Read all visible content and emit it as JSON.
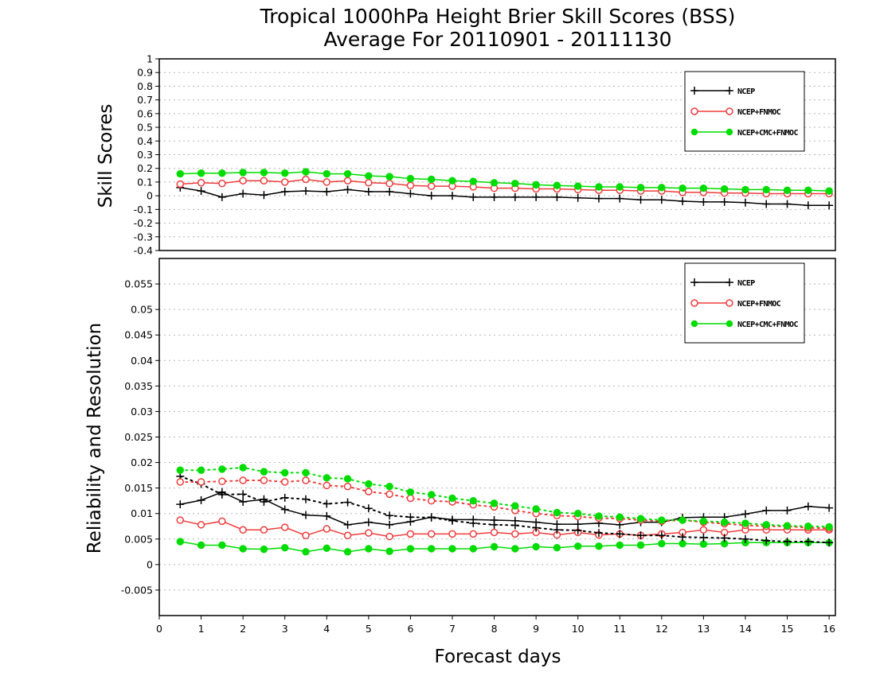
{
  "title_line1": "Tropical 1000hPa Height Brier Skill Scores (BSS)",
  "title_line2": "Average For 20110901 - 20111130",
  "xlabel": "Forecast days",
  "colors": {
    "NCEP": "#000000",
    "NCEP_FNMOC": "#f03c3c",
    "NCEP_CMC_FNMOC": "#00dc00",
    "grid": "#b4b4b4"
  },
  "chart_data": [
    {
      "type": "line",
      "ylabel": "Skill Scores",
      "xlim": [
        0,
        16.15
      ],
      "ylim": [
        -0.4,
        1
      ],
      "x_ticks": [
        0,
        1,
        2,
        3,
        4,
        5,
        6,
        7,
        8,
        9,
        10,
        11,
        12,
        13,
        14,
        15,
        16
      ],
      "y_ticks": [
        "-0.4",
        "-0.3",
        "-0.2",
        "-0.1",
        "0",
        "0.1",
        "0.2",
        "0.3",
        "0.4",
        "0.5",
        "0.6",
        "0.7",
        "0.8",
        "0.9",
        "1"
      ],
      "grid": true,
      "legend": "top-right",
      "x": [
        0.5,
        1,
        1.5,
        2,
        2.5,
        3,
        3.5,
        4,
        4.5,
        5,
        5.5,
        6,
        6.5,
        7,
        7.5,
        8,
        8.5,
        9,
        9.5,
        10,
        10.5,
        11,
        11.5,
        12,
        12.5,
        13,
        13.5,
        14,
        14.5,
        15,
        15.5,
        16
      ],
      "series": [
        {
          "name": "NCEP",
          "marker": "plus",
          "style": "solid",
          "values": [
            0.06,
            0.035,
            -0.01,
            0.015,
            0.005,
            0.03,
            0.035,
            0.03,
            0.045,
            0.03,
            0.03,
            0.015,
            0.0,
            0.0,
            -0.01,
            -0.01,
            -0.01,
            -0.01,
            -0.01,
            -0.015,
            -0.02,
            -0.02,
            -0.03,
            -0.03,
            -0.04,
            -0.045,
            -0.045,
            -0.05,
            -0.06,
            -0.06,
            -0.07,
            -0.07
          ]
        },
        {
          "name": "NCEP+FNMOC",
          "marker": "open-circle",
          "style": "solid",
          "values": [
            0.085,
            0.095,
            0.09,
            0.11,
            0.11,
            0.1,
            0.12,
            0.1,
            0.11,
            0.095,
            0.09,
            0.075,
            0.07,
            0.07,
            0.065,
            0.055,
            0.055,
            0.05,
            0.05,
            0.045,
            0.04,
            0.04,
            0.035,
            0.035,
            0.025,
            0.025,
            0.02,
            0.02,
            0.015,
            0.015,
            0.015,
            0.015
          ]
        },
        {
          "name": "NCEP+CMC+FNMOC",
          "marker": "filled-circle",
          "style": "solid",
          "values": [
            0.16,
            0.165,
            0.165,
            0.17,
            0.17,
            0.165,
            0.175,
            0.16,
            0.16,
            0.145,
            0.14,
            0.125,
            0.12,
            0.11,
            0.105,
            0.095,
            0.09,
            0.08,
            0.075,
            0.07,
            0.065,
            0.065,
            0.06,
            0.06,
            0.055,
            0.055,
            0.05,
            0.045,
            0.045,
            0.04,
            0.04,
            0.035
          ]
        }
      ]
    },
    {
      "type": "line",
      "ylabel": "Reliability and Resolution",
      "xlim": [
        0,
        16.15
      ],
      "ylim": [
        -0.01,
        0.06
      ],
      "x_ticks": [
        0,
        1,
        2,
        3,
        4,
        5,
        6,
        7,
        8,
        9,
        10,
        11,
        12,
        13,
        14,
        15,
        16
      ],
      "y_ticks": [
        "-0.005",
        "0",
        "0.005",
        "0.01",
        "0.015",
        "0.02",
        "0.025",
        "0.03",
        "0.035",
        "0.04",
        "0.045",
        "0.05",
        "0.055"
      ],
      "grid": true,
      "legend": "top-right",
      "x": [
        0.5,
        1,
        1.5,
        2,
        2.5,
        3,
        3.5,
        4,
        4.5,
        5,
        5.5,
        6,
        6.5,
        7,
        7.5,
        8,
        8.5,
        9,
        9.5,
        10,
        10.5,
        11,
        11.5,
        12,
        12.5,
        13,
        13.5,
        14,
        14.5,
        15,
        15.5,
        16
      ],
      "series": [
        {
          "name": "NCEP",
          "marker": "plus",
          "style": "solid",
          "values": [
            0.0118,
            0.0126,
            0.0142,
            0.0123,
            0.0128,
            0.0108,
            0.0097,
            0.0095,
            0.0078,
            0.0083,
            0.0078,
            0.0084,
            0.0093,
            0.0088,
            0.0088,
            0.0087,
            0.0086,
            0.0083,
            0.0079,
            0.0079,
            0.0081,
            0.0078,
            0.0083,
            0.0083,
            0.0092,
            0.0093,
            0.0093,
            0.0099,
            0.0106,
            0.0106,
            0.0114,
            0.0111
          ]
        },
        {
          "name": "NCEP+FNMOC",
          "marker": "open-circle",
          "style": "solid",
          "values": [
            0.0087,
            0.0078,
            0.0085,
            0.0068,
            0.0068,
            0.0073,
            0.0057,
            0.007,
            0.0057,
            0.0062,
            0.0055,
            0.006,
            0.006,
            0.006,
            0.006,
            0.0063,
            0.006,
            0.0063,
            0.0058,
            0.0063,
            0.0058,
            0.006,
            0.0057,
            0.006,
            0.0063,
            0.0068,
            0.0063,
            0.0068,
            0.0068,
            0.0068,
            0.0068,
            0.0068
          ]
        },
        {
          "name": "NCEP+CMC+FNMOC",
          "marker": "filled-circle",
          "style": "solid",
          "values": [
            0.0045,
            0.0038,
            0.0038,
            0.0031,
            0.003,
            0.0033,
            0.0025,
            0.0032,
            0.0025,
            0.0031,
            0.0026,
            0.0031,
            0.0031,
            0.0031,
            0.0031,
            0.0035,
            0.0031,
            0.0035,
            0.0033,
            0.0036,
            0.0036,
            0.0038,
            0.0038,
            0.0041,
            0.0041,
            0.004,
            0.0041,
            0.0043,
            0.0043,
            0.0043,
            0.0043,
            0.0043
          ]
        },
        {
          "name": "NCEP",
          "marker": "plus",
          "style": "dotted",
          "values": [
            0.0173,
            0.0158,
            0.0137,
            0.0138,
            0.0123,
            0.0131,
            0.0128,
            0.0119,
            0.0122,
            0.011,
            0.0096,
            0.0093,
            0.0092,
            0.0086,
            0.0081,
            0.0078,
            0.0077,
            0.0072,
            0.0068,
            0.0067,
            0.0062,
            0.006,
            0.0057,
            0.0057,
            0.0054,
            0.0053,
            0.0052,
            0.005,
            0.0047,
            0.0045,
            0.0045,
            0.0043
          ]
        },
        {
          "name": "NCEP+FNMOC",
          "marker": "open-circle",
          "style": "dotted",
          "values": [
            0.0162,
            0.0162,
            0.0163,
            0.0165,
            0.0165,
            0.0162,
            0.0165,
            0.0155,
            0.0153,
            0.0143,
            0.0138,
            0.013,
            0.0125,
            0.0123,
            0.0117,
            0.0113,
            0.0106,
            0.01,
            0.0096,
            0.0094,
            0.0091,
            0.009,
            0.0087,
            0.0085,
            0.0087,
            0.0083,
            0.008,
            0.0077,
            0.0075,
            0.0075,
            0.0072,
            0.0071
          ]
        },
        {
          "name": "NCEP+CMC+FNMOC",
          "marker": "filled-circle",
          "style": "dotted",
          "values": [
            0.0185,
            0.0185,
            0.0187,
            0.019,
            0.0182,
            0.018,
            0.018,
            0.017,
            0.0168,
            0.0158,
            0.0153,
            0.0142,
            0.0137,
            0.013,
            0.0125,
            0.012,
            0.0115,
            0.0109,
            0.0102,
            0.01,
            0.0095,
            0.0093,
            0.009,
            0.0087,
            0.0087,
            0.0085,
            0.0083,
            0.0081,
            0.0078,
            0.0076,
            0.0075,
            0.0074
          ]
        }
      ]
    }
  ],
  "legend_labels": [
    "NCEP",
    "NCEP+FNMOC",
    "NCEP+CMC+FNMOC"
  ]
}
